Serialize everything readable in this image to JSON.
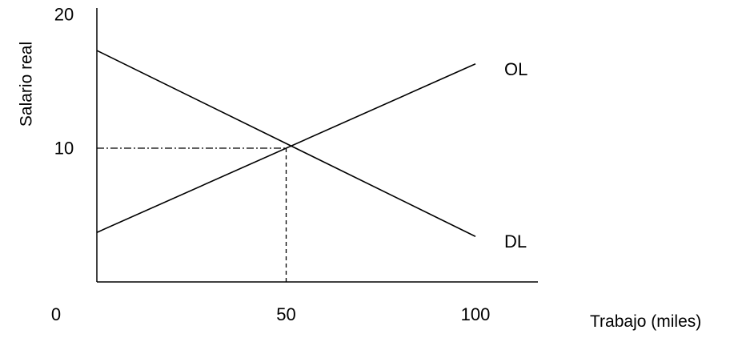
{
  "chart_data": {
    "type": "line",
    "title": "",
    "xlabel": "Trabajo (miles)",
    "ylabel": "Salario real",
    "xlim": [
      0,
      100
    ],
    "ylim": [
      0,
      20
    ],
    "x_ticks": [
      {
        "value": 0,
        "label": "0"
      },
      {
        "value": 50,
        "label": "50"
      },
      {
        "value": 100,
        "label": "100"
      }
    ],
    "y_ticks": [
      {
        "value": 10,
        "label": "10"
      },
      {
        "value": 20,
        "label": "20"
      }
    ],
    "series": [
      {
        "name": "OL",
        "x": [
          0,
          100
        ],
        "y": [
          3.7,
          16.3
        ]
      },
      {
        "name": "DL",
        "x": [
          0,
          100
        ],
        "y": [
          17.3,
          3.4
        ]
      }
    ],
    "equilibrium": {
      "x": 50,
      "y": 10
    },
    "grid": false,
    "legend": "inline labels at right end of lines",
    "colors": {
      "line": "#000000",
      "background": "#ffffff"
    }
  }
}
